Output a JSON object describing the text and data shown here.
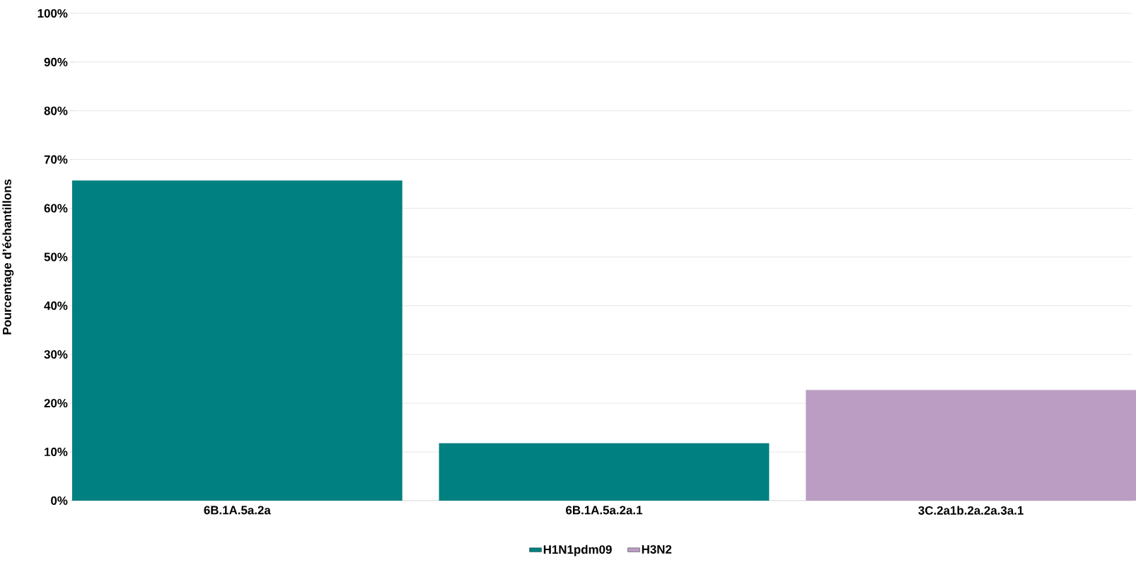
{
  "chart_data": {
    "type": "bar",
    "ylabel": "Pourcentage d’échantillons",
    "categories": [
      "6B.1A.5a.2a",
      "6B.1A.5a.2a.1",
      "3C.2a1b.2a.2a.3a.1"
    ],
    "series": [
      {
        "name": "H1N1pdm09",
        "color": "#008080",
        "values": [
          65.7,
          11.8,
          null
        ]
      },
      {
        "name": "H3N2",
        "color": "#bb9dc3",
        "values": [
          null,
          null,
          22.7
        ]
      }
    ],
    "ylim": [
      0,
      100
    ],
    "yticks": [
      {
        "value": 0,
        "label": "0%"
      },
      {
        "value": 10,
        "label": "10%"
      },
      {
        "value": 20,
        "label": "20%"
      },
      {
        "value": 30,
        "label": "30%"
      },
      {
        "value": 40,
        "label": "40%"
      },
      {
        "value": 50,
        "label": "50%"
      },
      {
        "value": 60,
        "label": "60%"
      },
      {
        "value": 70,
        "label": "70%"
      },
      {
        "value": 80,
        "label": "80%"
      },
      {
        "value": 90,
        "label": "90%"
      },
      {
        "value": 100,
        "label": "100%"
      }
    ],
    "grid": "y",
    "legend": "bottom"
  }
}
